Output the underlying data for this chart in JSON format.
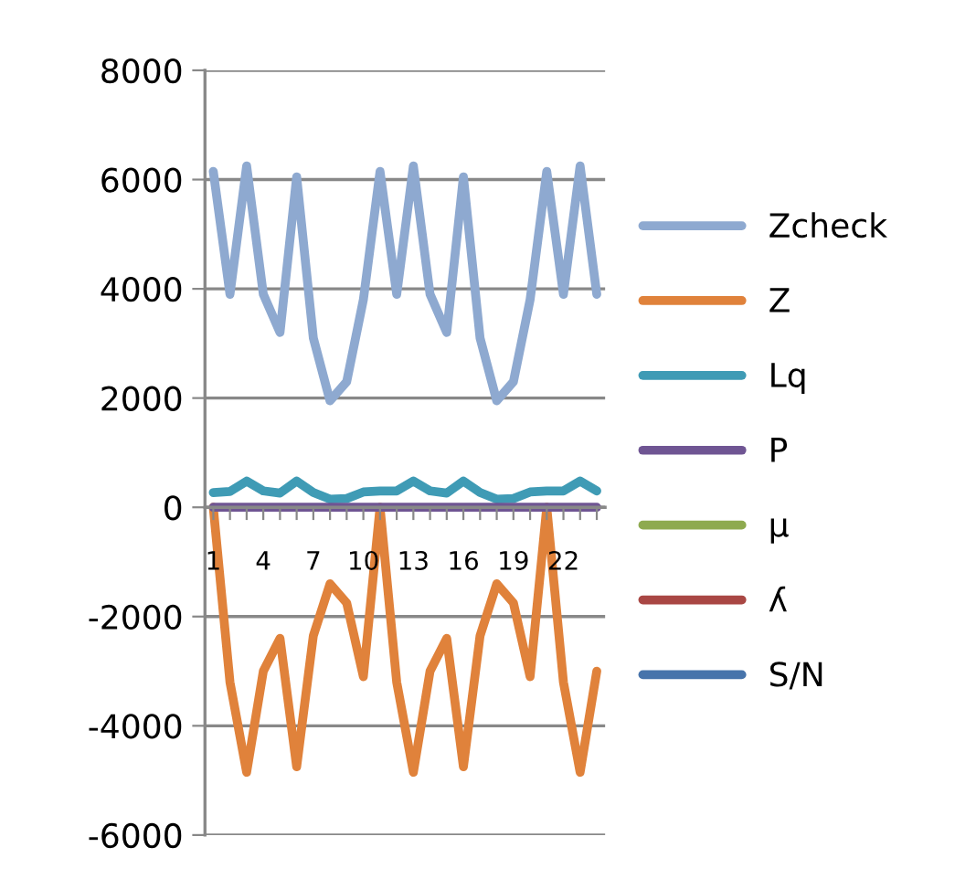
{
  "chart_data": {
    "type": "line",
    "categories": [
      "1",
      null,
      null,
      "4",
      null,
      null,
      "7",
      null,
      null,
      "10",
      null,
      null,
      "13",
      null,
      null,
      "16",
      null,
      null,
      "19",
      null,
      null,
      "22",
      null,
      null
    ],
    "series": [
      {
        "name": "Zcheck",
        "color": "#8ea9d0",
        "values": [
          6150,
          3900,
          6250,
          3900,
          3200,
          6050,
          3100,
          1950,
          2300,
          3800,
          6150,
          3900,
          6250,
          3900,
          3200,
          6050,
          3100,
          1950,
          2300,
          3800,
          6150,
          3900,
          6250,
          3900
        ]
      },
      {
        "name": "Z",
        "color": "#e0823b",
        "values": [
          0,
          -3200,
          -4850,
          -3000,
          -2400,
          -4750,
          -2350,
          -1400,
          -1750,
          -3100,
          0,
          -3200,
          -4850,
          -3000,
          -2400,
          -4750,
          -2350,
          -1400,
          -1750,
          -3100,
          0,
          -3200,
          -4850,
          -3000
        ]
      },
      {
        "name": "Lq",
        "color": "#3f9bb5",
        "values": [
          270,
          290,
          480,
          300,
          260,
          480,
          270,
          150,
          160,
          280,
          300,
          300,
          480,
          300,
          260,
          480,
          270,
          150,
          160,
          280,
          300,
          300,
          480,
          300
        ]
      },
      {
        "name": "P",
        "color": "#6f5593",
        "values": [
          0,
          0,
          0,
          0,
          0,
          0,
          0,
          0,
          0,
          0,
          0,
          0,
          0,
          0,
          0,
          0,
          0,
          0,
          0,
          0,
          0,
          0,
          0,
          0
        ]
      },
      {
        "name": "μ",
        "color": "#8eaa4f",
        "values": [
          null,
          null,
          null,
          null,
          null,
          null,
          null,
          null,
          null,
          null,
          null,
          null,
          null,
          null,
          null,
          null,
          null,
          null,
          null,
          null,
          null,
          null,
          null,
          null
        ]
      },
      {
        "name": "ʎ",
        "color": "#a94744",
        "values": [
          null,
          null,
          null,
          null,
          null,
          null,
          null,
          null,
          null,
          null,
          null,
          null,
          null,
          null,
          null,
          null,
          null,
          null,
          null,
          null,
          null,
          null,
          null,
          null
        ]
      },
      {
        "name": "S/N",
        "color": "#4774ab",
        "values": [
          null,
          null,
          null,
          null,
          null,
          null,
          null,
          null,
          null,
          null,
          null,
          null,
          null,
          null,
          null,
          null,
          null,
          null,
          null,
          null,
          null,
          null,
          null,
          null
        ]
      }
    ],
    "ylim": [
      -6000,
      8000
    ],
    "yticks": [
      -6000,
      -4000,
      -2000,
      0,
      2000,
      4000,
      6000,
      8000
    ],
    "grid": "y",
    "legend": "right",
    "marker": "none",
    "line_style": "solid"
  }
}
